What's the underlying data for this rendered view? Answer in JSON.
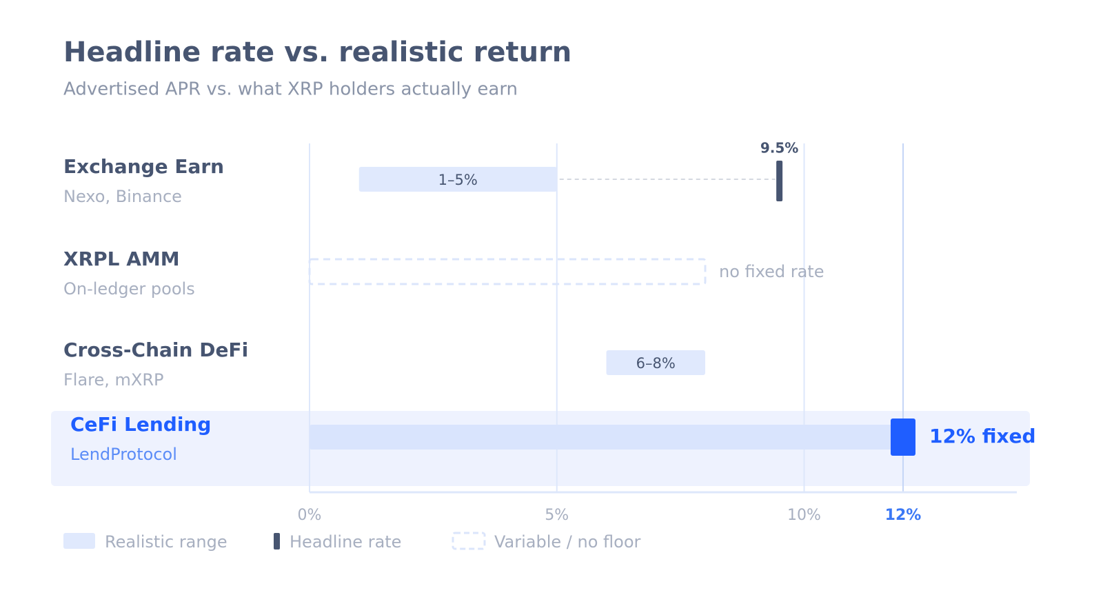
{
  "chart_data": {
    "type": "range",
    "title": "Headline rate vs. realistic return",
    "subtitle": "Advertised APR vs. what XRP holders actually earn",
    "xlim": [
      0,
      14.3
    ],
    "xticks": [
      {
        "value": 0,
        "label": "0%"
      },
      {
        "value": 5,
        "label": "5%"
      },
      {
        "value": 10,
        "label": "10%"
      },
      {
        "value": 12,
        "label": "12%"
      }
    ],
    "grid": true,
    "colors": {
      "range": "#e0e9fd",
      "headline": "#475571",
      "highlight": "#1f5eff",
      "variable": "#dbe5fb"
    },
    "rows": [
      {
        "name": "Exchange Earn",
        "detail": "Nexo, Binance",
        "range": [
          1,
          5
        ],
        "range_label": "1–5%",
        "headline": 9.5,
        "headline_label": "9.5%"
      },
      {
        "name": "XRPL AMM",
        "detail": "On-ledger pools",
        "variable": [
          0,
          8
        ],
        "note": "no fixed rate"
      },
      {
        "name": "Cross-Chain DeFi",
        "detail": "Flare, mXRP",
        "range": [
          6,
          8
        ],
        "range_label": "6–8%"
      },
      {
        "name": "CeFi Lending",
        "detail": "LendProtocol",
        "range": [
          0,
          12
        ],
        "headline": 12,
        "headline_label": "12% fixed",
        "highlight": true
      }
    ],
    "legend": [
      {
        "label": "Realistic range",
        "kind": "range"
      },
      {
        "label": "Headline rate",
        "kind": "headline"
      },
      {
        "label": "Variable / no floor",
        "kind": "variable"
      }
    ]
  }
}
